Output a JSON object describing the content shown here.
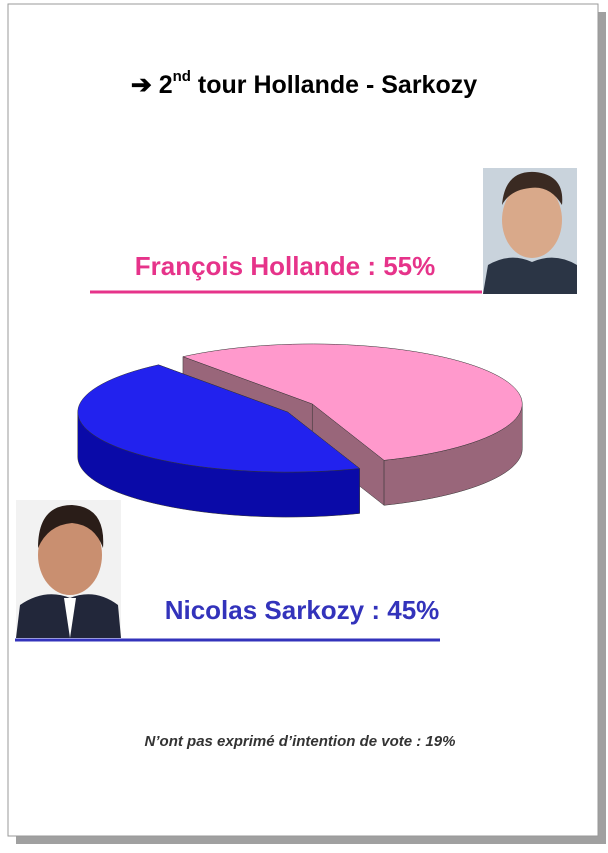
{
  "chart_data": {
    "type": "pie3d",
    "title": [
      "➔ 2",
      "nd",
      " tour Hollande - Sarkozy"
    ],
    "values": [
      55,
      45
    ],
    "labels": [
      "François Hollande : 55%",
      "Nicolas Sarkozy : 45%"
    ],
    "colors": [
      "#ff99cc",
      "#2222ee"
    ],
    "side_colors": [
      "#99667a",
      "#0a0aa8"
    ],
    "label_colors": [
      "#e6338a",
      "#3333bb"
    ],
    "annotation": "N’ont pas exprimé d’intention de vote : 19%"
  }
}
